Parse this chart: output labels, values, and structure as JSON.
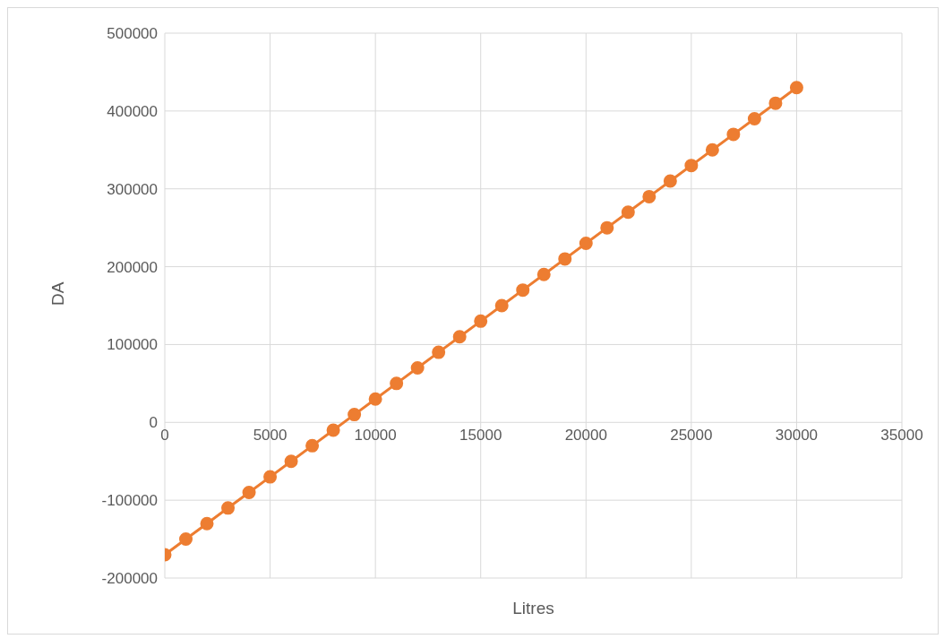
{
  "chart_data": {
    "type": "line",
    "xlabel": "Litres",
    "ylabel": "DA",
    "x": [
      0,
      1000,
      2000,
      3000,
      4000,
      5000,
      6000,
      7000,
      8000,
      9000,
      10000,
      11000,
      12000,
      13000,
      14000,
      15000,
      16000,
      17000,
      18000,
      19000,
      20000,
      21000,
      22000,
      23000,
      24000,
      25000,
      26000,
      27000,
      28000,
      29000,
      30000
    ],
    "series": [
      {
        "color": "#ed7d31",
        "values": [
          -170000,
          -150000,
          -130000,
          -110000,
          -90000,
          -70000,
          -50000,
          -30000,
          -10000,
          10000,
          30000,
          50000,
          70000,
          90000,
          110000,
          130000,
          150000,
          170000,
          190000,
          210000,
          230000,
          250000,
          270000,
          290000,
          310000,
          330000,
          350000,
          370000,
          390000,
          410000,
          430000
        ]
      }
    ],
    "xlim": [
      0,
      35000
    ],
    "xticks": [
      0,
      5000,
      10000,
      15000,
      20000,
      25000,
      30000,
      35000
    ],
    "ylim": [
      -200000,
      500000
    ],
    "yticks": [
      -200000,
      -100000,
      0,
      100000,
      200000,
      300000,
      400000,
      500000
    ],
    "grid": true,
    "legend": false,
    "marker": "circle",
    "line_style": "solid"
  }
}
